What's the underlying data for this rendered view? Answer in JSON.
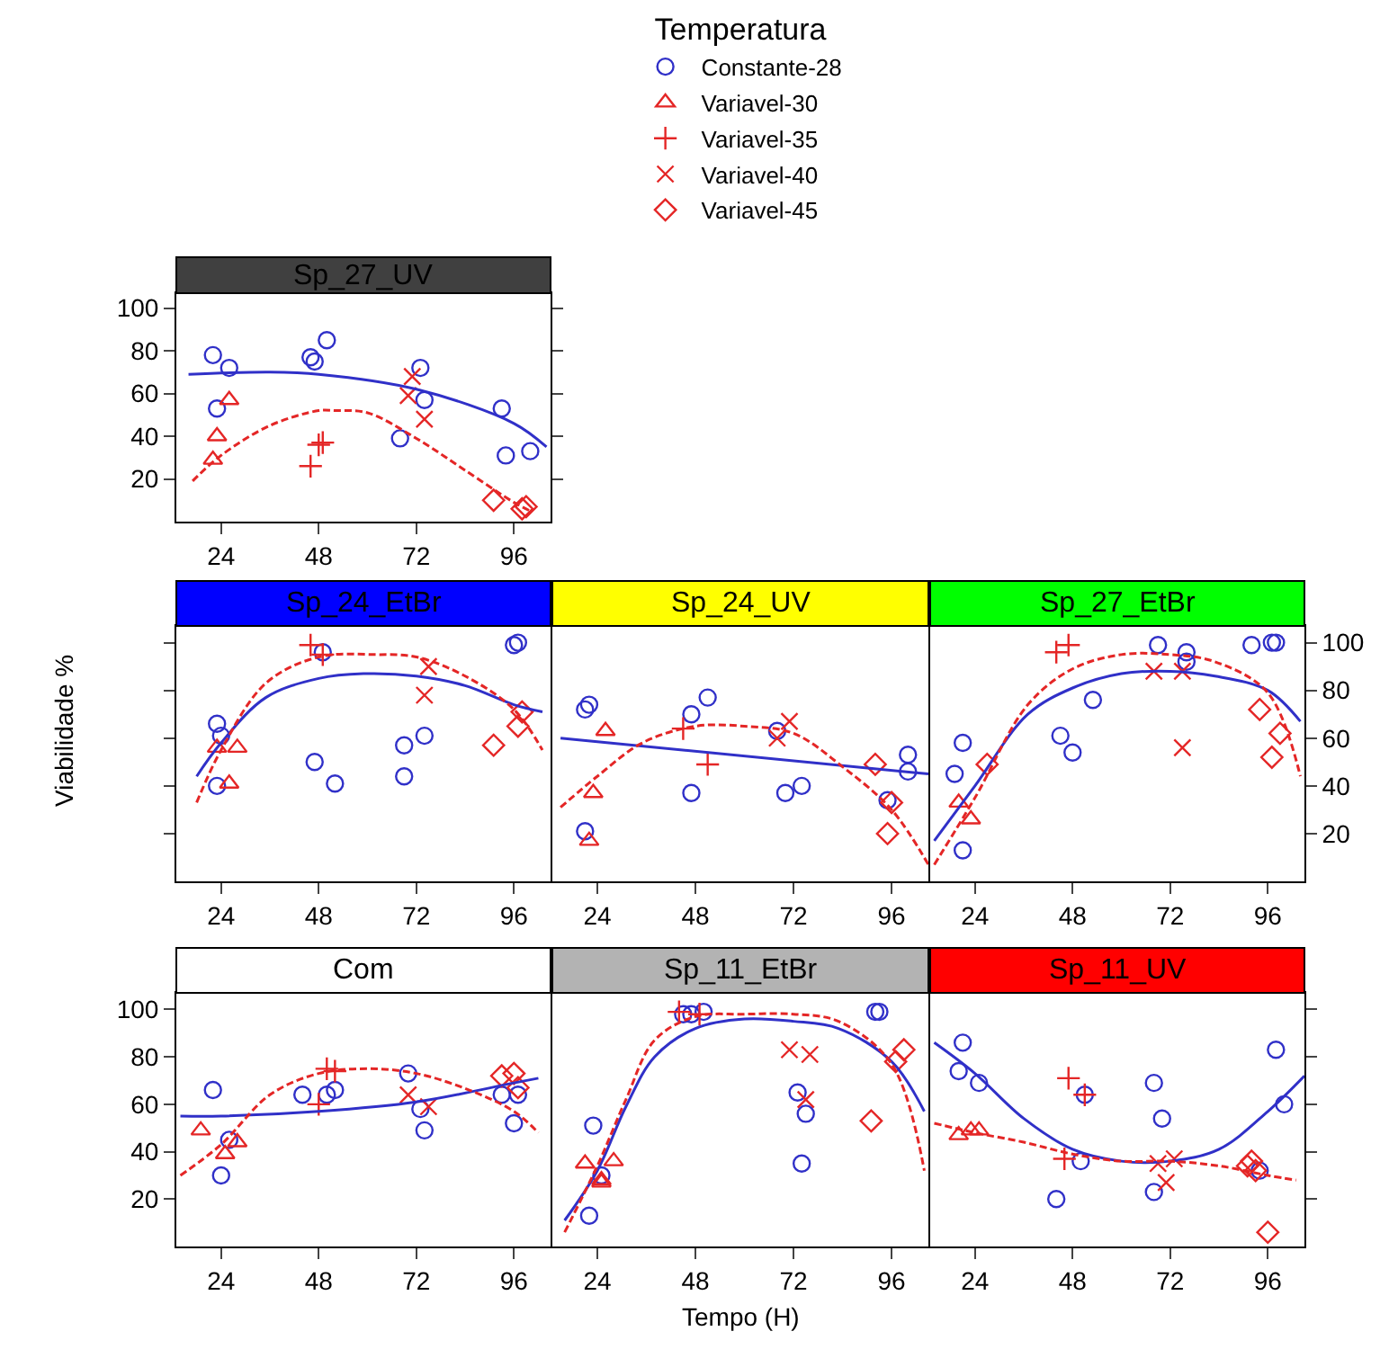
{
  "chart_data": [
    {
      "type": "scatter",
      "title": "Sp_27_UV",
      "legend": "top",
      "legend_title": "Temperatura",
      "xlim": [
        13,
        105
      ],
      "xticks": [
        24,
        48,
        72,
        96
      ],
      "ylim": [
        0,
        107
      ],
      "yticks": [
        20,
        40,
        60,
        80,
        100
      ],
      "series": [
        {
          "name": "Constante-28",
          "color": "#3030c8",
          "marker": "circle",
          "x": [
            22,
            26,
            23,
            46,
            47,
            50,
            73,
            74,
            68,
            93,
            94,
            100
          ],
          "values": [
            78,
            72,
            53,
            77,
            75,
            85,
            72,
            57,
            39,
            53,
            31,
            33
          ]
        },
        {
          "name": "Variavel-30",
          "color": "#e42626",
          "marker": "triangle",
          "x": [
            26,
            23,
            22
          ],
          "values": [
            57,
            40,
            29
          ]
        },
        {
          "name": "Variavel-35",
          "color": "#e42626",
          "marker": "cross",
          "x": [
            46,
            48,
            49
          ],
          "values": [
            26,
            36,
            37
          ]
        },
        {
          "name": "Variavel-40",
          "color": "#e42626",
          "marker": "x",
          "x": [
            71,
            70,
            74
          ],
          "values": [
            68,
            59,
            48
          ]
        },
        {
          "name": "Variavel-45",
          "color": "#e42626",
          "marker": "diamond",
          "x": [
            91,
            98,
            99
          ],
          "values": [
            10,
            6,
            7
          ]
        },
        {
          "type": "line",
          "color": "#3030c8",
          "line_style": "solid",
          "x": [
            16,
            36,
            48,
            72,
            96,
            104
          ],
          "values": [
            69,
            70,
            69,
            62,
            46,
            35
          ]
        },
        {
          "type": "line",
          "color": "#e42626",
          "line_style": "dashed",
          "x": [
            17,
            24,
            36,
            48,
            52,
            60,
            72,
            84,
            96,
            100
          ],
          "values": [
            19,
            31,
            45,
            52,
            52,
            51,
            39,
            24,
            9,
            5
          ]
        }
      ]
    },
    {
      "type": "scatter",
      "title": "Sp_24_EtBr",
      "ylabel": "Viabilidade %",
      "tick_labels": "x",
      "xlim": [
        13,
        105
      ],
      "xticks": [
        24,
        48,
        72,
        96
      ],
      "ylim": [
        0,
        107
      ],
      "yticks": [
        20,
        40,
        60,
        80,
        100
      ],
      "series": [
        {
          "color": "#3030c8",
          "marker": "circle",
          "x": [
            23,
            24,
            23,
            47,
            52,
            49,
            69,
            69,
            74,
            96,
            97
          ],
          "values": [
            66,
            61,
            40,
            50,
            41,
            96,
            57,
            44,
            61,
            99,
            100
          ]
        },
        {
          "color": "#e42626",
          "marker": "triangle",
          "x": [
            23,
            28,
            26
          ],
          "values": [
            56,
            56,
            41
          ]
        },
        {
          "color": "#e42626",
          "marker": "cross",
          "x": [
            46,
            49
          ],
          "values": [
            99,
            95
          ]
        },
        {
          "color": "#e42626",
          "marker": "x",
          "x": [
            75,
            74
          ],
          "values": [
            90,
            78
          ]
        },
        {
          "color": "#e42626",
          "marker": "diamond",
          "x": [
            91,
            97,
            98
          ],
          "values": [
            57,
            65,
            71
          ]
        },
        {
          "type": "line",
          "color": "#3030c8",
          "line_style": "solid",
          "x": [
            18,
            24,
            35,
            48,
            59,
            72,
            84,
            96,
            103
          ],
          "values": [
            44,
            58,
            77,
            85,
            87,
            86,
            82,
            74,
            71
          ]
        },
        {
          "type": "line",
          "color": "#e42626",
          "line_style": "dashed",
          "x": [
            18,
            24,
            35,
            48,
            62,
            72,
            84,
            96,
            103
          ],
          "values": [
            33,
            55,
            83,
            94,
            95,
            94,
            86,
            72,
            55
          ]
        }
      ]
    },
    {
      "type": "scatter",
      "title": "Sp_24_UV",
      "tick_labels": "x",
      "xlim": [
        13,
        105
      ],
      "xticks": [
        24,
        48,
        72,
        96
      ],
      "ylim": [
        0,
        107
      ],
      "yticks": [
        20,
        40,
        60,
        80,
        100
      ],
      "series": [
        {
          "color": "#3030c8",
          "marker": "circle",
          "x": [
            21,
            22,
            21,
            47,
            51,
            47,
            68,
            70,
            74,
            95,
            100,
            100
          ],
          "values": [
            72,
            74,
            21,
            70,
            77,
            37,
            63,
            37,
            40,
            34,
            53,
            46
          ]
        },
        {
          "color": "#e42626",
          "marker": "triangle",
          "x": [
            26,
            23,
            22
          ],
          "values": [
            63,
            37,
            17
          ]
        },
        {
          "color": "#e42626",
          "marker": "cross",
          "x": [
            45,
            51
          ],
          "values": [
            64,
            49
          ]
        },
        {
          "color": "#e42626",
          "marker": "x",
          "x": [
            68,
            71
          ],
          "values": [
            60,
            67
          ]
        },
        {
          "color": "#e42626",
          "marker": "diamond",
          "x": [
            92,
            96,
            95
          ],
          "values": [
            49,
            33,
            20
          ]
        },
        {
          "type": "line",
          "color": "#3030c8",
          "line_style": "solid",
          "x": [
            15,
            105
          ],
          "values": [
            60,
            45
          ]
        },
        {
          "type": "line",
          "color": "#e42626",
          "line_style": "dashed",
          "x": [
            15,
            24,
            35,
            48,
            60,
            72,
            84,
            96,
            105
          ],
          "values": [
            31,
            44,
            58,
            65,
            65,
            62,
            48,
            30,
            7
          ]
        }
      ]
    },
    {
      "type": "scatter",
      "title": "Sp_27_EtBr",
      "xlim": [
        13,
        105
      ],
      "xticks": [
        24,
        48,
        72,
        96
      ],
      "ylim": [
        0,
        107
      ],
      "yticks": [
        20,
        40,
        60,
        80,
        100
      ],
      "series": [
        {
          "color": "#3030c8",
          "marker": "circle",
          "x": [
            21,
            19,
            21,
            45,
            48,
            53,
            69,
            76,
            76,
            92,
            97,
            98
          ],
          "values": [
            58,
            45,
            13,
            61,
            54,
            76,
            99,
            96,
            92,
            99,
            100,
            100
          ]
        },
        {
          "color": "#e42626",
          "marker": "triangle",
          "x": [
            20,
            23
          ],
          "values": [
            33,
            26
          ]
        },
        {
          "color": "#e42626",
          "marker": "cross",
          "x": [
            44,
            47
          ],
          "values": [
            96,
            99
          ]
        },
        {
          "color": "#e42626",
          "marker": "x",
          "x": [
            68,
            75,
            75
          ],
          "values": [
            88,
            88,
            56
          ]
        },
        {
          "color": "#e42626",
          "marker": "diamond",
          "x": [
            27,
            94,
            99,
            97
          ],
          "values": [
            49,
            72,
            62,
            52
          ]
        },
        {
          "type": "line",
          "color": "#3030c8",
          "line_style": "solid",
          "x": [
            14,
            24,
            37,
            48,
            60,
            72,
            83,
            96,
            104
          ],
          "values": [
            17,
            40,
            70,
            81,
            87,
            88,
            86,
            80,
            67
          ]
        },
        {
          "type": "line",
          "color": "#e42626",
          "line_style": "dashed",
          "x": [
            14,
            24,
            37,
            48,
            60,
            72,
            83,
            96,
            104
          ],
          "values": [
            7,
            35,
            74,
            89,
            95,
            95,
            92,
            79,
            44
          ]
        }
      ]
    },
    {
      "type": "scatter",
      "title": "Com",
      "xlim": [
        13,
        105
      ],
      "xticks": [
        24,
        48,
        72,
        96
      ],
      "ylim": [
        0,
        107
      ],
      "yticks": [
        20,
        40,
        60,
        80,
        100
      ],
      "series": [
        {
          "color": "#3030c8",
          "marker": "circle",
          "x": [
            22,
            24,
            26,
            44,
            50,
            52,
            70,
            73,
            74,
            93,
            97,
            96
          ],
          "values": [
            66,
            30,
            45,
            64,
            64,
            66,
            73,
            58,
            49,
            64,
            64,
            52
          ]
        },
        {
          "color": "#e42626",
          "marker": "triangle",
          "x": [
            19,
            25,
            28
          ],
          "values": [
            49,
            39,
            44
          ]
        },
        {
          "color": "#e42626",
          "marker": "cross",
          "x": [
            48,
            50,
            52
          ],
          "values": [
            60,
            75,
            74
          ]
        },
        {
          "color": "#e42626",
          "marker": "x",
          "x": [
            70,
            75
          ],
          "values": [
            64,
            59
          ]
        },
        {
          "color": "#e42626",
          "marker": "diamond",
          "x": [
            93,
            96,
            97
          ],
          "values": [
            72,
            73,
            67
          ]
        },
        {
          "type": "line",
          "color": "#3030c8",
          "line_style": "solid",
          "x": [
            14,
            24,
            48,
            72,
            96,
            102
          ],
          "values": [
            55,
            55,
            57,
            61,
            69,
            71
          ]
        },
        {
          "type": "line",
          "color": "#e42626",
          "line_style": "dashed",
          "x": [
            14,
            24,
            36,
            48,
            60,
            72,
            85,
            96,
            102
          ],
          "values": [
            30,
            43,
            64,
            73,
            75,
            73,
            66,
            57,
            48
          ]
        }
      ]
    },
    {
      "type": "scatter",
      "title": "Sp_11_EtBr",
      "xlabel": "Tempo (H)",
      "tick_labels": "x",
      "xlim": [
        13,
        105
      ],
      "xticks": [
        24,
        48,
        72,
        96
      ],
      "ylim": [
        0,
        107
      ],
      "yticks": [
        20,
        40,
        60,
        80,
        100
      ],
      "series": [
        {
          "color": "#3030c8",
          "marker": "circle",
          "x": [
            23,
            22,
            25,
            45,
            47,
            50,
            73,
            75,
            74,
            92,
            93
          ],
          "values": [
            51,
            13,
            30,
            98,
            98,
            99,
            65,
            56,
            35,
            99,
            99
          ]
        },
        {
          "color": "#e42626",
          "marker": "triangle",
          "x": [
            21,
            28,
            25,
            25
          ],
          "values": [
            35,
            36,
            28,
            27
          ]
        },
        {
          "color": "#e42626",
          "marker": "cross",
          "x": [
            44,
            49
          ],
          "values": [
            99,
            98
          ]
        },
        {
          "color": "#e42626",
          "marker": "x",
          "x": [
            71,
            76,
            75
          ],
          "values": [
            83,
            81,
            62
          ]
        },
        {
          "color": "#e42626",
          "marker": "diamond",
          "x": [
            91,
            99,
            97
          ],
          "values": [
            53,
            83,
            78
          ]
        },
        {
          "type": "line",
          "color": "#3030c8",
          "line_style": "solid",
          "x": [
            16,
            24,
            31,
            38,
            48,
            60,
            72,
            83,
            96,
            104
          ],
          "values": [
            11,
            32,
            59,
            80,
            92,
            96,
            95,
            92,
            78,
            57
          ]
        },
        {
          "type": "line",
          "color": "#e42626",
          "line_style": "dashed",
          "x": [
            16,
            24,
            31,
            38,
            48,
            60,
            72,
            83,
            96,
            104
          ],
          "values": [
            6,
            34,
            62,
            87,
            97,
            98,
            98,
            95,
            77,
            32
          ]
        }
      ]
    },
    {
      "type": "scatter",
      "title": "Sp_11_UV",
      "tick_labels": "x",
      "xlim": [
        13,
        105
      ],
      "xticks": [
        24,
        48,
        72,
        96
      ],
      "ylim": [
        0,
        107
      ],
      "yticks": [
        20,
        40,
        60,
        80,
        100
      ],
      "series": [
        {
          "color": "#3030c8",
          "marker": "circle",
          "x": [
            21,
            20,
            25,
            44,
            50,
            51,
            68,
            70,
            68,
            94,
            98,
            100
          ],
          "values": [
            86,
            74,
            69,
            20,
            36,
            64,
            69,
            54,
            23,
            32,
            83,
            60
          ]
        },
        {
          "color": "#e42626",
          "marker": "triangle",
          "x": [
            20,
            23,
            25
          ],
          "values": [
            47,
            49,
            49
          ]
        },
        {
          "color": "#e42626",
          "marker": "cross",
          "x": [
            47,
            46,
            51
          ],
          "values": [
            71,
            37,
            64
          ]
        },
        {
          "color": "#e42626",
          "marker": "x",
          "x": [
            69,
            71,
            73
          ],
          "values": [
            35,
            27,
            37
          ]
        },
        {
          "color": "#e42626",
          "marker": "diamond",
          "x": [
            92,
            91,
            93,
            96
          ],
          "values": [
            36,
            34,
            32,
            6
          ]
        },
        {
          "type": "line",
          "color": "#3030c8",
          "line_style": "solid",
          "x": [
            14,
            24,
            36,
            48,
            60,
            72,
            84,
            96,
            105
          ],
          "values": [
            86,
            73,
            54,
            41,
            36,
            36,
            41,
            57,
            72
          ]
        },
        {
          "type": "line",
          "color": "#e42626",
          "line_style": "dashed",
          "x": [
            14,
            24,
            36,
            48,
            60,
            72,
            84,
            96,
            103
          ],
          "values": [
            52,
            48,
            44,
            39,
            36,
            36,
            34,
            30,
            28
          ]
        }
      ]
    }
  ]
}
